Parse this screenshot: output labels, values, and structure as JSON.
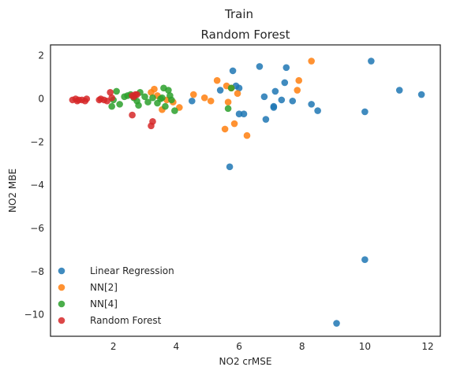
{
  "figure": {
    "suptitle": "Train"
  },
  "chart_data": {
    "type": "scatter",
    "title": "Random Forest",
    "xlabel": "NO2 crMSE",
    "ylabel": "NO2 MBE",
    "xlim": [
      0,
      12.4
    ],
    "ylim": [
      -11,
      2.5
    ],
    "xticks": [
      2,
      4,
      6,
      8,
      10,
      12
    ],
    "yticks": [
      2,
      0,
      -2,
      -4,
      -6,
      -8,
      -10
    ],
    "grid": false,
    "legend_position": "lower-left",
    "series": [
      {
        "name": "Linear Regression",
        "color": "#1f77b4",
        "points": [
          [
            4.5,
            -0.1
          ],
          [
            5.4,
            0.4
          ],
          [
            5.8,
            1.3
          ],
          [
            5.9,
            0.6
          ],
          [
            6.0,
            0.5
          ],
          [
            6.0,
            -0.7
          ],
          [
            6.15,
            -0.7
          ],
          [
            5.7,
            -3.15
          ],
          [
            6.65,
            1.5
          ],
          [
            6.8,
            0.1
          ],
          [
            6.85,
            -0.95
          ],
          [
            7.1,
            -0.35
          ],
          [
            7.15,
            0.35
          ],
          [
            7.1,
            -0.4
          ],
          [
            7.35,
            -0.05
          ],
          [
            7.45,
            0.75
          ],
          [
            7.5,
            1.45
          ],
          [
            7.7,
            -0.1
          ],
          [
            8.3,
            -0.25
          ],
          [
            8.5,
            -0.55
          ],
          [
            9.1,
            -10.4
          ],
          [
            10.0,
            -7.45
          ],
          [
            10.0,
            -0.6
          ],
          [
            10.2,
            1.75
          ],
          [
            11.1,
            0.4
          ],
          [
            11.8,
            0.2
          ]
        ]
      },
      {
        "name": "NN[2]",
        "color": "#ff7f0e",
        "points": [
          [
            3.2,
            0.3
          ],
          [
            3.3,
            0.45
          ],
          [
            3.4,
            0.15
          ],
          [
            3.55,
            -0.5
          ],
          [
            3.7,
            -0.05
          ],
          [
            3.9,
            -0.15
          ],
          [
            4.1,
            -0.4
          ],
          [
            4.55,
            0.2
          ],
          [
            4.9,
            0.05
          ],
          [
            5.1,
            -0.1
          ],
          [
            5.3,
            0.85
          ],
          [
            5.55,
            -1.4
          ],
          [
            5.6,
            0.6
          ],
          [
            5.65,
            -0.15
          ],
          [
            5.75,
            0.5
          ],
          [
            5.85,
            -1.15
          ],
          [
            5.95,
            0.25
          ],
          [
            6.25,
            -1.7
          ],
          [
            7.85,
            0.4
          ],
          [
            7.9,
            0.85
          ],
          [
            8.3,
            1.75
          ]
        ]
      },
      {
        "name": "NN[4]",
        "color": "#2ca02c",
        "points": [
          [
            1.95,
            -0.35
          ],
          [
            2.0,
            -0.05
          ],
          [
            2.1,
            0.35
          ],
          [
            2.2,
            -0.25
          ],
          [
            2.35,
            0.1
          ],
          [
            2.45,
            0.15
          ],
          [
            2.55,
            0.2
          ],
          [
            2.65,
            0.05
          ],
          [
            2.75,
            -0.1
          ],
          [
            2.8,
            -0.3
          ],
          [
            2.85,
            0.3
          ],
          [
            3.0,
            0.1
          ],
          [
            3.1,
            -0.15
          ],
          [
            3.25,
            0.05
          ],
          [
            3.4,
            -0.2
          ],
          [
            3.5,
            0.0
          ],
          [
            3.55,
            0.05
          ],
          [
            3.6,
            0.5
          ],
          [
            3.65,
            -0.35
          ],
          [
            3.75,
            0.4
          ],
          [
            3.8,
            0.15
          ],
          [
            3.85,
            -0.05
          ],
          [
            3.95,
            -0.55
          ],
          [
            5.65,
            -0.45
          ],
          [
            5.75,
            0.5
          ]
        ]
      },
      {
        "name": "Random Forest",
        "color": "#d62728",
        "points": [
          [
            0.7,
            -0.05
          ],
          [
            0.8,
            0.0
          ],
          [
            0.85,
            -0.1
          ],
          [
            0.9,
            -0.05
          ],
          [
            1.0,
            -0.05
          ],
          [
            1.1,
            -0.1
          ],
          [
            1.15,
            0.0
          ],
          [
            1.55,
            -0.05
          ],
          [
            1.6,
            0.0
          ],
          [
            1.7,
            -0.05
          ],
          [
            1.8,
            -0.1
          ],
          [
            1.9,
            0.3
          ],
          [
            1.95,
            0.05
          ],
          [
            2.6,
            -0.75
          ],
          [
            2.6,
            0.15
          ],
          [
            2.65,
            0.1
          ],
          [
            2.7,
            0.2
          ],
          [
            2.75,
            0.2
          ],
          [
            3.2,
            -1.25
          ],
          [
            3.25,
            -1.05
          ]
        ]
      }
    ]
  }
}
